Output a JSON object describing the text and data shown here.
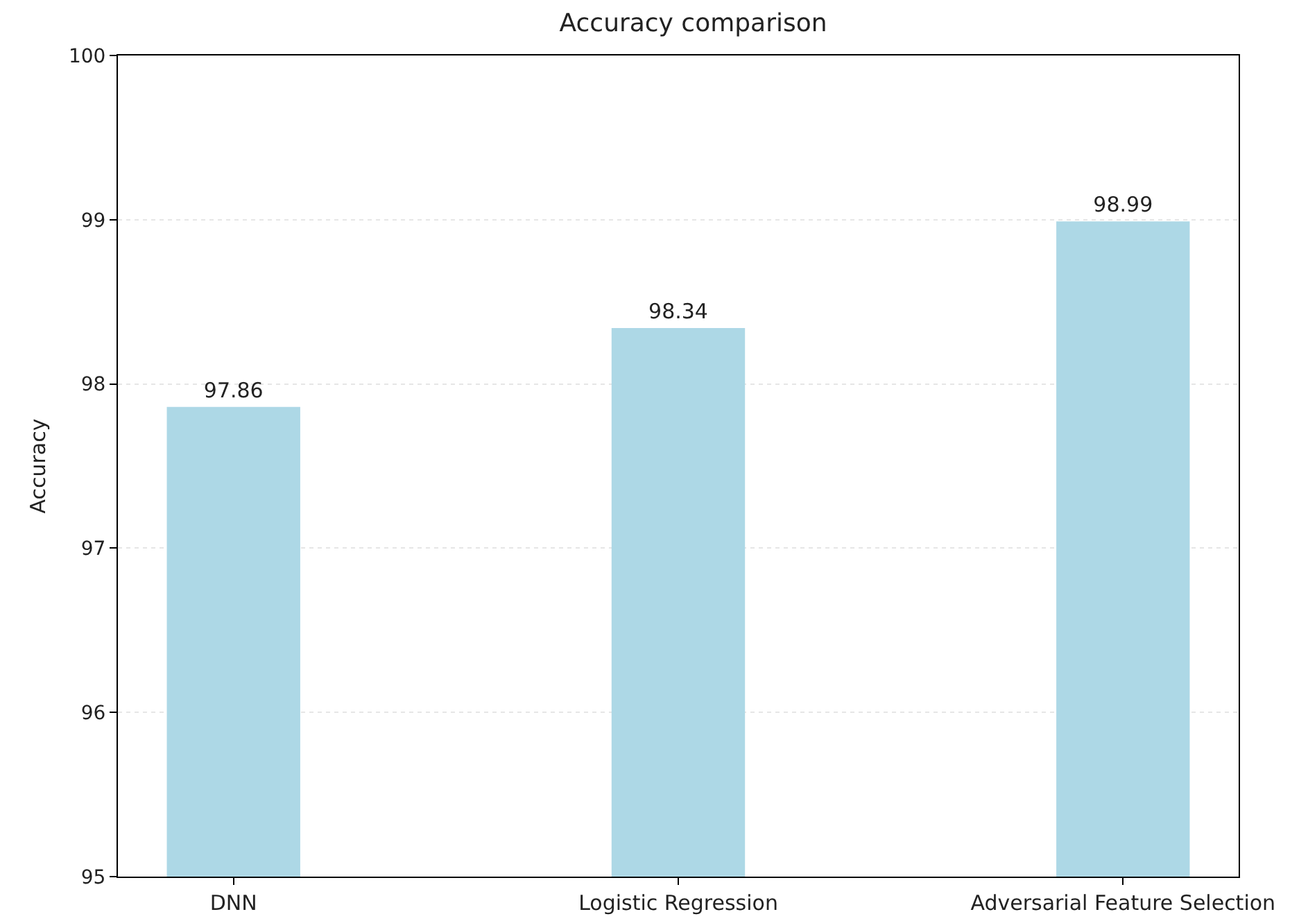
{
  "chart_data": {
    "type": "bar",
    "title": "Accuracy comparison",
    "ylabel": "Accuracy",
    "categories": [
      "DNN",
      "Logistic Regression",
      "Adversarial Feature Selection"
    ],
    "values": [
      97.86,
      98.34,
      98.99
    ],
    "color": "#add8e6",
    "ylim": [
      95,
      100
    ],
    "yticks": [
      95,
      96,
      97,
      98,
      99,
      100
    ],
    "grid": "y",
    "data_labels": true
  }
}
